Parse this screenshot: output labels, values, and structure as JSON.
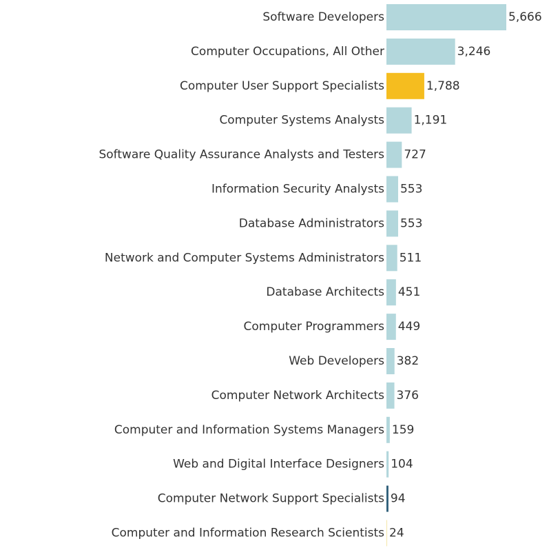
{
  "chart_data": {
    "type": "bar",
    "orientation": "horizontal",
    "categories": [
      "Software Developers",
      "Computer Occupations, All Other",
      "Computer User Support Specialists",
      "Computer Systems Analysts",
      "Software Quality Assurance Analysts and Testers",
      "Information Security Analysts",
      "Database Administrators",
      "Network and Computer Systems Administrators",
      "Database Architects",
      "Computer Programmers",
      "Web Developers",
      "Computer Network Architects",
      "Computer and Information Systems Managers",
      "Web and Digital Interface Designers",
      "Computer Network Support Specialists",
      "Computer and Information Research Scientists"
    ],
    "values": [
      5666,
      3246,
      1788,
      1191,
      727,
      553,
      553,
      511,
      451,
      449,
      382,
      376,
      159,
      104,
      94,
      24
    ],
    "value_labels": [
      "5,666",
      "3,246",
      "1,788",
      "1,191",
      "727",
      "553",
      "553",
      "511",
      "451",
      "449",
      "382",
      "376",
      "159",
      "104",
      "94",
      "24"
    ],
    "bar_colors": [
      "#b3d7dc",
      "#b3d7dc",
      "#f5bd1f",
      "#b3d7dc",
      "#b3d7dc",
      "#b3d7dc",
      "#b3d7dc",
      "#b3d7dc",
      "#b3d7dc",
      "#b3d7dc",
      "#b3d7dc",
      "#b3d7dc",
      "#b3d7dc",
      "#b3d7dc",
      "#2f5f7a",
      "#f5e6a8"
    ],
    "title": "",
    "xlabel": "",
    "ylabel": "",
    "xlim": [
      0,
      5666
    ],
    "grid": false,
    "legend": "none"
  }
}
